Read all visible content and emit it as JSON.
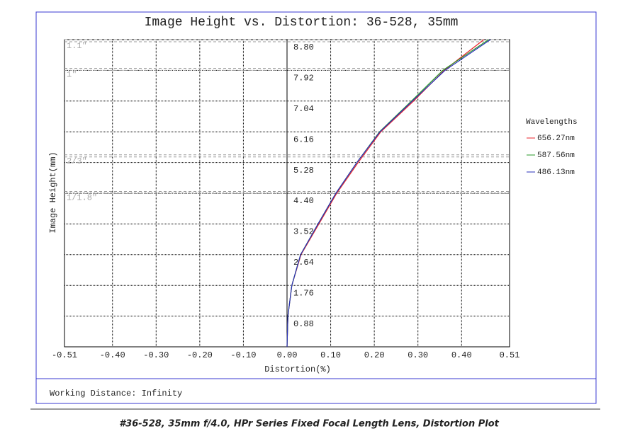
{
  "chart_data": {
    "type": "line",
    "title": "Image Height vs. Distortion: 36-528, 35mm",
    "x_label": "Distortion(%)",
    "y_label": "Image Height(mm)",
    "legend_title": "Wavelengths",
    "y": [
      0,
      0.88,
      1.76,
      2.64,
      3.52,
      4.4,
      5.28,
      6.16,
      7.04,
      7.92,
      8.8
    ],
    "series": [
      {
        "name": "656.27nm",
        "color": "#e8242c",
        "values": [
          0,
          0.002,
          0.011,
          0.032,
          0.073,
          0.114,
          0.163,
          0.215,
          0.29,
          0.36,
          0.451
        ]
      },
      {
        "name": "587.56nm",
        "color": "#2a9a2a",
        "values": [
          0,
          0.002,
          0.011,
          0.031,
          0.071,
          0.112,
          0.16,
          0.212,
          0.285,
          0.357,
          0.462
        ]
      },
      {
        "name": "486.13nm",
        "color": "#2830b8",
        "values": [
          0,
          0.002,
          0.011,
          0.031,
          0.071,
          0.112,
          0.16,
          0.213,
          0.287,
          0.362,
          0.466
        ]
      }
    ],
    "xlim": [
      -0.51,
      0.51
    ],
    "ylim": [
      0,
      8.8
    ],
    "xticks": [
      {
        "value": -0.51,
        "label": "-0.51"
      },
      {
        "value": -0.4,
        "label": "-0.40"
      },
      {
        "value": -0.3,
        "label": "-0.30"
      },
      {
        "value": -0.2,
        "label": "-0.20"
      },
      {
        "value": -0.1,
        "label": "-0.10"
      },
      {
        "value": 0,
        "label": "0.00"
      },
      {
        "value": 0.1,
        "label": "0.10"
      },
      {
        "value": 0.2,
        "label": "0.20"
      },
      {
        "value": 0.3,
        "label": "0.30"
      },
      {
        "value": 0.4,
        "label": "0.40"
      },
      {
        "value": 0.51,
        "label": "0.51"
      }
    ],
    "yticks": [
      {
        "value": 0.88,
        "label": "0.88"
      },
      {
        "value": 1.76,
        "label": "1.76"
      },
      {
        "value": 2.64,
        "label": "2.64"
      },
      {
        "value": 3.52,
        "label": "3.52"
      },
      {
        "value": 4.4,
        "label": "4.40"
      },
      {
        "value": 5.28,
        "label": "5.28"
      },
      {
        "value": 6.16,
        "label": "6.16"
      },
      {
        "value": 7.04,
        "label": "7.04"
      },
      {
        "value": 7.92,
        "label": "7.92"
      },
      {
        "value": 8.8,
        "label": "8.80"
      }
    ],
    "sensor_formats": [
      {
        "value": 8.8,
        "label": "1.1\""
      },
      {
        "value": 7.98,
        "label": "1\""
      },
      {
        "value": 5.5,
        "label": "2/3\""
      },
      {
        "value": 4.45,
        "label": "1/1.8\""
      }
    ],
    "grid": true
  },
  "footer": {
    "working_distance": "Working Distance: Infinity"
  },
  "caption": "#36-528, 35mm f/4.0, HPr Series Fixed Focal Length Lens, Distortion Plot"
}
